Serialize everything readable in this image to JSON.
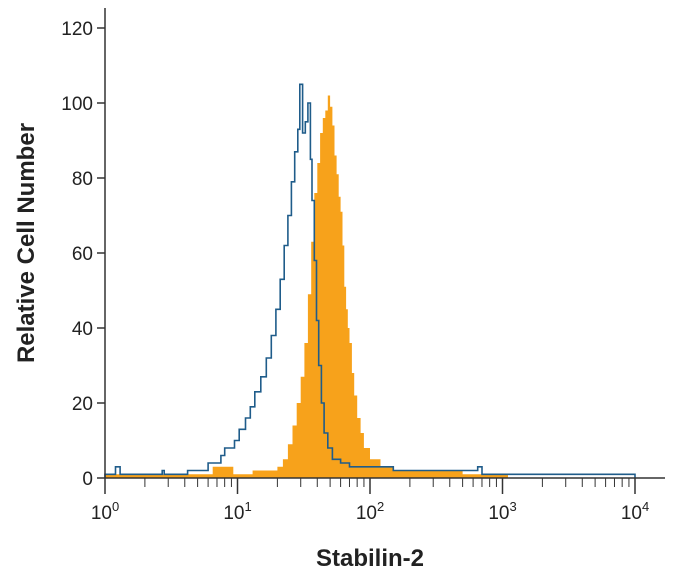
{
  "chart_data": {
    "type": "histogram",
    "xlabel": "Stabilin-2",
    "ylabel": "Relative Cell Number",
    "x_scale": "log",
    "xlim": [
      1,
      10000
    ],
    "ylim": [
      0,
      120
    ],
    "grid": false,
    "legend": "none",
    "x_ticks": [
      {
        "value": 1,
        "base": "10",
        "exp": "0"
      },
      {
        "value": 10,
        "base": "10",
        "exp": "1"
      },
      {
        "value": 100,
        "base": "10",
        "exp": "2"
      },
      {
        "value": 1000,
        "base": "10",
        "exp": "3"
      },
      {
        "value": 10000,
        "base": "10",
        "exp": "4"
      }
    ],
    "y_ticks": [
      0,
      20,
      40,
      60,
      80,
      100,
      120
    ],
    "colors": {
      "axis": "#333333",
      "filled": "#F7A21B",
      "outline": "#1F5C8A"
    },
    "series": [
      {
        "style": "filled",
        "color": "#F7A21B",
        "x": [
          1,
          4.2,
          6.5,
          9.3,
          13,
          17,
          20,
          22,
          24,
          26,
          28,
          30,
          32,
          34,
          36,
          38,
          40,
          42,
          44,
          46,
          48,
          50,
          52,
          54,
          56,
          58,
          60,
          62,
          64,
          66,
          68,
          70,
          73,
          76,
          80,
          85,
          90,
          100,
          120,
          150,
          200,
          300,
          500,
          700,
          1100
        ],
        "values": [
          1,
          1,
          3,
          1,
          2,
          2,
          3,
          5,
          9,
          14,
          20,
          27,
          36,
          49,
          63,
          76,
          84,
          92,
          96,
          98,
          102,
          99,
          94,
          86,
          81,
          75,
          71,
          62,
          51,
          45,
          40,
          36,
          28,
          22,
          16,
          12,
          8,
          5,
          3,
          2,
          2,
          2,
          1,
          1,
          0
        ]
      },
      {
        "style": "outline",
        "color": "#1F5C8A",
        "x": [
          1,
          1.2,
          1.3,
          2.7,
          2.8,
          4.2,
          6,
          7.5,
          8,
          9.5,
          10.3,
          11.5,
          12.5,
          13.5,
          15,
          16.5,
          18,
          19.5,
          21,
          22.5,
          24,
          25.5,
          27,
          28.5,
          29.5,
          31,
          32.5,
          34,
          35.5,
          36.5,
          38,
          39.5,
          41,
          43,
          45,
          48,
          52,
          60,
          70,
          90,
          150,
          400,
          650,
          700,
          750,
          1000,
          10000
        ],
        "values": [
          1,
          3,
          1,
          2,
          1,
          2,
          4,
          6,
          8,
          10,
          13,
          16,
          19,
          23,
          27,
          32,
          38,
          45,
          53,
          62,
          70,
          79,
          87,
          93,
          105,
          92,
          95,
          100,
          85,
          74,
          58,
          42,
          30,
          20,
          12,
          8,
          5,
          4,
          3,
          3,
          2,
          2,
          3,
          1,
          1,
          1,
          0
        ]
      }
    ]
  }
}
